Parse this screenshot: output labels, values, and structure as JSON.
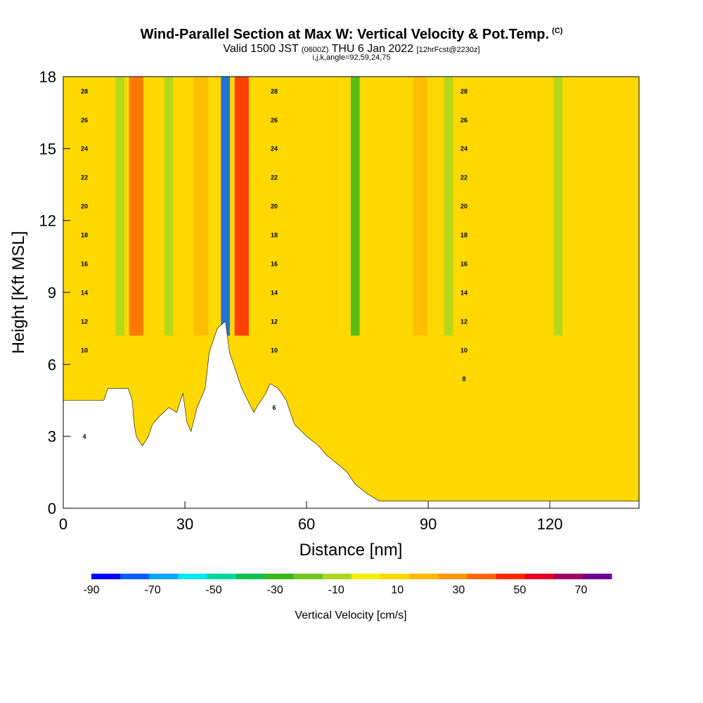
{
  "header": {
    "title": "Wind-Parallel Section at Max W: Vertical Velocity & Pot.Temp.",
    "copyright": "(C)",
    "valid_prefix": "Valid 1500 JST",
    "valid_utc": "(0600Z)",
    "valid_date": "THU 6 Jan 2022",
    "forecast_info": "[12hrFcst@2230z]",
    "params": "i,j,k,angle=92,59,24,75"
  },
  "chart_data": {
    "type": "heatmap",
    "xlabel": "Distance [nm]",
    "ylabel": "Height [Kft MSL]",
    "xlim": [
      0,
      142
    ],
    "ylim": [
      0,
      18
    ],
    "x_ticks": [
      0,
      30,
      60,
      90,
      120
    ],
    "y_ticks": [
      0,
      3,
      6,
      9,
      12,
      15,
      18
    ],
    "colorbar": {
      "label": "Vertical Velocity [cm/s]",
      "ticks": [
        "-90",
        "-70",
        "-50",
        "-30",
        "-10",
        "10",
        "30",
        "50",
        "70"
      ],
      "bounds": [
        -90,
        80
      ],
      "step": 10,
      "colors": [
        "#0000ff",
        "#0060ff",
        "#00a8ff",
        "#00e8f0",
        "#00d8a0",
        "#10c050",
        "#38b818",
        "#70c820",
        "#a8d820",
        "#f0f000",
        "#ffd800",
        "#ffb800",
        "#ff9800",
        "#ff6800",
        "#ff2800",
        "#e00020",
        "#a00060",
        "#700090"
      ]
    },
    "background_level": 10,
    "updraft_bands": [
      {
        "x": 18,
        "level": 45
      },
      {
        "x": 44,
        "level": 50
      },
      {
        "x": 34,
        "level": 25
      },
      {
        "x": 88,
        "level": 25
      }
    ],
    "downdraft_bands": [
      {
        "x": 40,
        "level": -80
      },
      {
        "x": 72,
        "level": -30
      },
      {
        "x": 14,
        "level": -10
      },
      {
        "x": 26,
        "level": -10
      },
      {
        "x": 95,
        "level": -10
      },
      {
        "x": 122,
        "level": -10
      }
    ],
    "terrain": [
      [
        0,
        4.5
      ],
      [
        10,
        4.5
      ],
      [
        11,
        5.0
      ],
      [
        16,
        5.0
      ],
      [
        17,
        4.5
      ],
      [
        17.5,
        3.5
      ],
      [
        18,
        3.0
      ],
      [
        19.5,
        2.6
      ],
      [
        21,
        3.0
      ],
      [
        22,
        3.5
      ],
      [
        23.5,
        3.8
      ],
      [
        26,
        4.2
      ],
      [
        28,
        4.0
      ],
      [
        29.5,
        4.8
      ],
      [
        30.5,
        3.6
      ],
      [
        31.5,
        3.2
      ],
      [
        33,
        4.2
      ],
      [
        35,
        5.0
      ],
      [
        36,
        6.5
      ],
      [
        38,
        7.5
      ],
      [
        40,
        7.8
      ],
      [
        41,
        6.5
      ],
      [
        43,
        5.5
      ],
      [
        44,
        5.0
      ],
      [
        45.5,
        4.5
      ],
      [
        47,
        4.0
      ],
      [
        48,
        4.3
      ],
      [
        50,
        4.8
      ],
      [
        51,
        5.2
      ],
      [
        53,
        5.0
      ],
      [
        55,
        4.5
      ],
      [
        56,
        4.0
      ],
      [
        57,
        3.5
      ],
      [
        60,
        3.0
      ],
      [
        63,
        2.6
      ],
      [
        65,
        2.2
      ],
      [
        68,
        1.8
      ],
      [
        70,
        1.5
      ],
      [
        72,
        1.0
      ],
      [
        75,
        0.6
      ],
      [
        78,
        0.3
      ],
      [
        80,
        0.3
      ],
      [
        142,
        0.3
      ]
    ],
    "theta_labels": [
      "4",
      "6",
      "8",
      "10",
      "10",
      "10",
      "12",
      "12",
      "12",
      "14",
      "14",
      "14",
      "16",
      "16",
      "16",
      "18",
      "18",
      "18",
      "20",
      "20",
      "20",
      "22",
      "22",
      "22",
      "24",
      "24",
      "24",
      "26",
      "26",
      "26",
      "28",
      "28",
      "28"
    ]
  }
}
